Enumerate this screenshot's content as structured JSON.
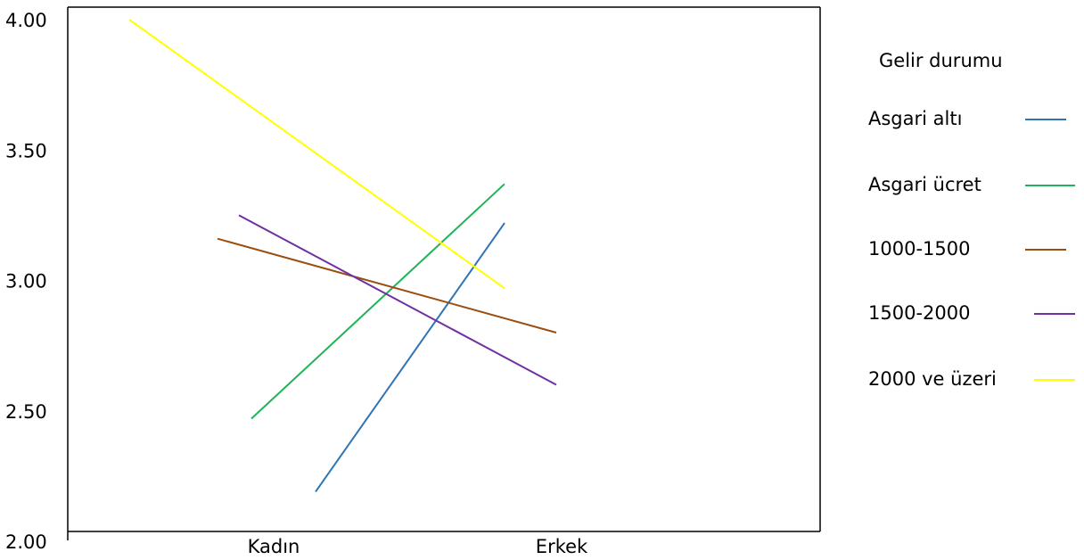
{
  "chart_data": {
    "type": "line",
    "categories": [
      "Kadın",
      "Erkek"
    ],
    "ylim": [
      2.0,
      4.0
    ],
    "yticks": [
      "2.00",
      "2.50",
      "3.00",
      "3.50",
      "4.00"
    ],
    "legend_title": "Gelir durumu",
    "legend_position": "right",
    "series": [
      {
        "name": "Asgari altı",
        "color": "#2E75B6",
        "values": [
          2.19,
          3.22
        ]
      },
      {
        "name": "Asgari ücret",
        "color": "#1FB457",
        "values": [
          2.47,
          3.37
        ]
      },
      {
        "name": "1000-1500",
        "color": "#9C4E0E",
        "values": [
          3.16,
          2.8
        ]
      },
      {
        "name": "1500-2000",
        "color": "#7030A0",
        "values": [
          3.25,
          2.6
        ]
      },
      {
        "name": "2000 ve üzeri",
        "color": "#FFFF00",
        "values": [
          4.0,
          2.97
        ]
      }
    ]
  }
}
